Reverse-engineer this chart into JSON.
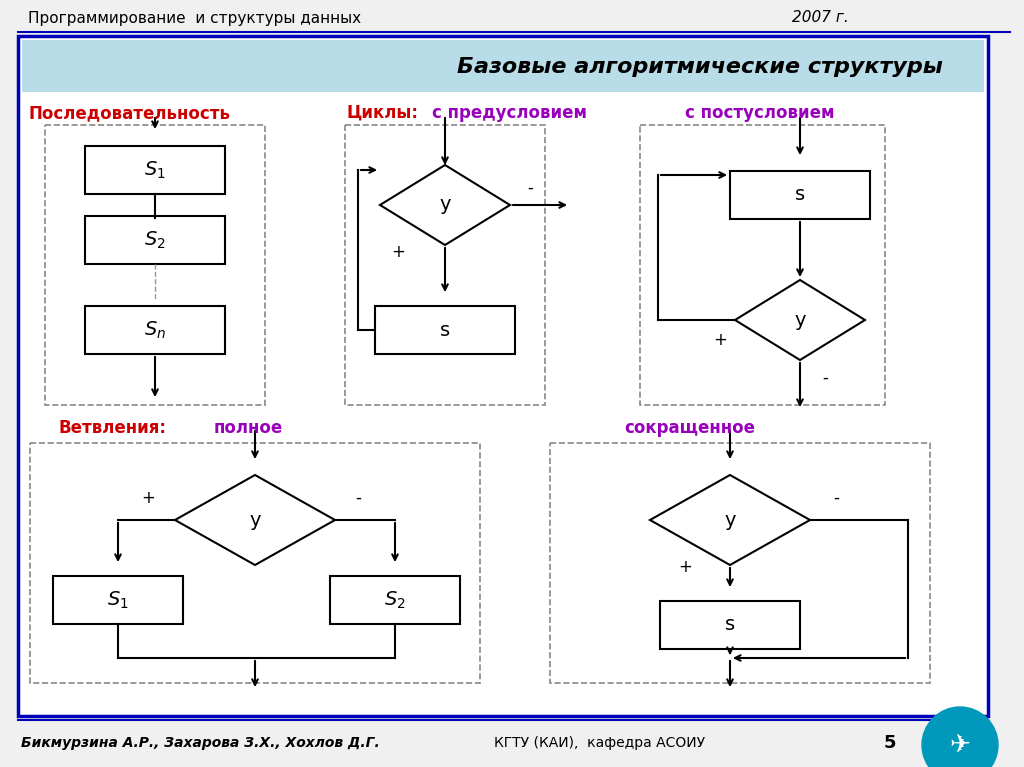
{
  "title_top_left": "Программирование  и структуры данных",
  "title_top_right": "2007 г.",
  "main_title": "Базовые алгоритмические структуры",
  "label_seq": "Последовательность",
  "label_cycles": "Циклы:",
  "label_precond": "с предусловием",
  "label_postcond": "с постусловием",
  "label_branch": "Ветвления:",
  "label_full": "полное",
  "label_short": "сокращенное",
  "footer_left": "Бикмурзина А.Р., Захарова З.Х., Хохлов Д.Г.",
  "footer_mid": "КГТУ (КАИ),  кафедра АСОИУ",
  "footer_num": "5",
  "bg_color": "#f0f0f0",
  "inner_bg": "#ffffff",
  "main_border_color": "#0000bb",
  "title_banner_color": "#b8dce8",
  "dashed_box_color": "#888888",
  "arrow_color": "#000000",
  "label_seq_color": "#cc0000",
  "label_cycles_color": "#cc0000",
  "label_precond_color": "#9900bb",
  "label_postcond_color": "#9900bb",
  "label_branch_color": "#cc0000",
  "label_full_color": "#9900bb",
  "label_short_color": "#9900bb",
  "accent_color": "#0099bb"
}
